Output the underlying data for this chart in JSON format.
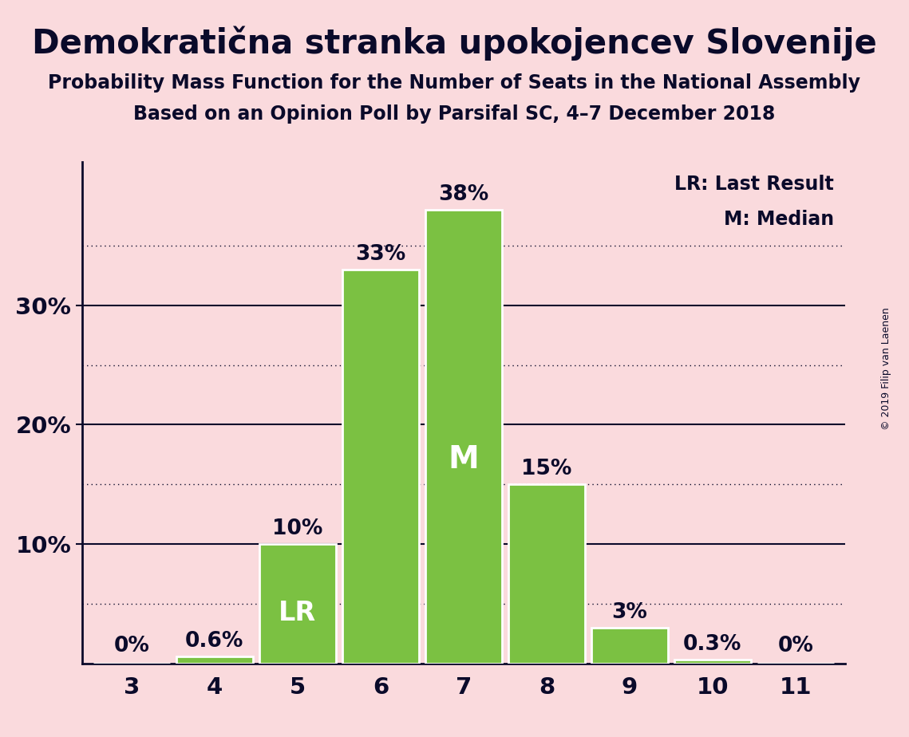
{
  "title": "Demokratična stranka upokojencev Slovenije",
  "subtitle1": "Probability Mass Function for the Number of Seats in the National Assembly",
  "subtitle2": "Based on an Opinion Poll by Parsifal SC, 4–7 December 2018",
  "copyright": "© 2019 Filip van Laenen",
  "categories": [
    3,
    4,
    5,
    6,
    7,
    8,
    9,
    10,
    11
  ],
  "values": [
    0.0,
    0.6,
    10.0,
    33.0,
    38.0,
    15.0,
    3.0,
    0.3,
    0.0
  ],
  "bar_color": "#7bc142",
  "bar_edge_color": "#ffffff",
  "background_color": "#fadadd",
  "text_color": "#0a0a2a",
  "lr_seat": 5,
  "median_seat": 7,
  "lr_label": "LR",
  "median_label": "M",
  "legend_lr": "LR: Last Result",
  "legend_m": "M: Median",
  "ylim": [
    0,
    42
  ],
  "solid_yticks": [
    10,
    20,
    30
  ],
  "dotted_yticks": [
    5,
    15,
    25,
    35
  ],
  "bar_labels": [
    "0%",
    "0.6%",
    "10%",
    "33%",
    "38%",
    "15%",
    "3%",
    "0.3%",
    "0%"
  ],
  "title_fontsize": 30,
  "subtitle_fontsize": 17,
  "tick_fontsize": 21,
  "bar_label_fontsize": 19,
  "legend_fontsize": 17,
  "lr_fontsize": 24,
  "m_fontsize": 28,
  "copyright_fontsize": 9
}
